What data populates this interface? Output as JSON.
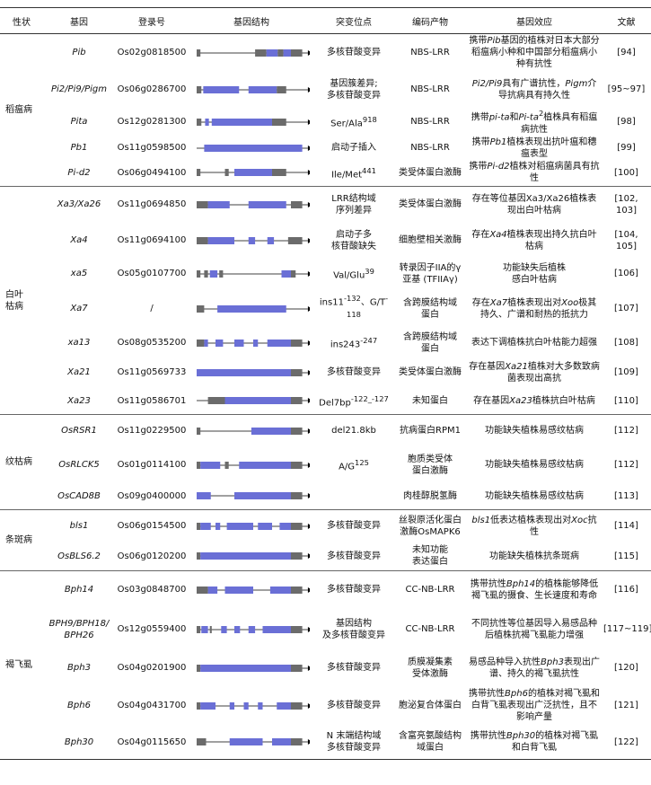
{
  "table": {
    "headers": [
      "性状",
      "基因",
      "登录号",
      "基因结构",
      "突变位点",
      "编码产物",
      "基因效应",
      "文献"
    ],
    "groups": [
      {
        "trait": "稻瘟病",
        "rows": [
          {
            "gene": "Pib",
            "acc": "Os02g0818500",
            "mut": "多核苷酸变异",
            "product": "NBS-LRR",
            "effect": [
              "携带",
              {
                "i": "Pib"
              },
              "基因的植株对日本大部分稻瘟病小种和中国部分稻瘟病小种有抗性"
            ],
            "ref": "[94]"
          },
          {
            "gene": "Pi2/Pi9/Pigm",
            "acc": "Os06g0286700",
            "mut": "基因簇差异;\n多核苷酸变异",
            "product": "NBS-LRR",
            "effect": [
              {
                "i": "Pi2/Pi9"
              },
              "具有广谱抗性，",
              {
                "i": "Pigm"
              },
              "介导抗病具有持久性"
            ],
            "ref": "[95~97]"
          },
          {
            "gene": "Pita",
            "acc": "Os12g0281300",
            "mut": [
              "Ser/Ala",
              {
                "sup": "918"
              }
            ],
            "product": "NBS-LRR",
            "effect": [
              "携带",
              {
                "i": "pi-ta"
              },
              "和",
              {
                "i": "Pi-ta"
              },
              {
                "sup": "2"
              },
              "植株具有稻瘟病抗性"
            ],
            "ref": "[98]"
          },
          {
            "gene": "Pb1",
            "acc": "Os11g0598500",
            "mut": "启动子插入",
            "product": "NBS-LRR",
            "effect": [
              "携带",
              {
                "i": "Pb1"
              },
              "植株表现出抗叶瘟和穗瘟表型"
            ],
            "ref": "[99]"
          },
          {
            "gene": "Pi-d2",
            "acc": "Os06g0494100",
            "mut": [
              "Ile/Met",
              {
                "sup": "441"
              }
            ],
            "product": "类受体蛋白激酶",
            "effect": [
              "携带",
              {
                "i": "Pi-d2"
              },
              "植株对稻瘟病菌具有抗性"
            ],
            "ref": "[100]"
          }
        ]
      },
      {
        "trait": "白叶\n枯病",
        "rows": [
          {
            "gene": "Xa3/Xa26",
            "acc": "Os11g0694850",
            "mut": "LRR结构域\n序列差异",
            "product": "类受体蛋白激酶",
            "effect": "存在等位基因Xa3/Xa26植株表现出白叶枯病",
            "ref": "[102,\n103]"
          },
          {
            "gene": "Xa4",
            "acc": "Os11g0694100",
            "mut": "启动子多\n核苷酸缺失",
            "product": "细胞壁相关激酶",
            "effect": [
              "存在",
              {
                "i": "Xa4"
              },
              "植株表现出持久抗白叶枯病"
            ],
            "ref": "[104,\n105]"
          },
          {
            "gene": "xa5",
            "acc": "Os05g0107700",
            "mut": [
              "Val/Glu",
              {
                "sup": "39"
              }
            ],
            "product": "转录因子IIA的γ\n亚基 (TFIIAγ)",
            "effect": "功能缺失后植株\n感白叶枯病",
            "ref": "[106]"
          },
          {
            "gene": "Xa7",
            "acc": "/",
            "mut": [
              "ins11",
              {
                "sup": "-132"
              },
              "、G/T",
              {
                "sup": "-118"
              }
            ],
            "product": "含跨膜结构域\n蛋白",
            "effect": [
              "存在",
              {
                "i": "Xa7"
              },
              "植株表现出对",
              {
                "i": "Xoo"
              },
              "极其持久、广谱和耐热的抵抗力"
            ],
            "ref": "[107]"
          },
          {
            "gene": "xa13",
            "acc": "Os08g0535200",
            "mut": [
              "ins243",
              {
                "sup": "-247"
              }
            ],
            "product": "含跨膜结构域\n蛋白",
            "effect": "表达下调植株抗白叶枯能力超强",
            "ref": "[108]"
          },
          {
            "gene": "Xa21",
            "acc": "Os11g0569733",
            "mut": "多核苷酸变异",
            "product": "类受体蛋白激酶",
            "effect": [
              "存在基因",
              {
                "i": "Xa21"
              },
              "植株对大多数致病菌表现出高抗"
            ],
            "ref": "[109]"
          },
          {
            "gene": "Xa23",
            "acc": "Os11g0586701",
            "mut": [
              "Del7bp",
              {
                "sup": "-122_-127"
              }
            ],
            "product": "未知蛋白",
            "effect": [
              "存在基因",
              {
                "i": "Xa23"
              },
              "植株抗白叶枯病"
            ],
            "ref": "[110]"
          }
        ]
      },
      {
        "trait": "纹枯病",
        "rows": [
          {
            "gene": "OsRSR1",
            "acc": "Os11g0229500",
            "mut": "del21.8kb",
            "product": "抗病蛋白RPM1",
            "effect": "功能缺失植株易感纹枯病",
            "ref": "[112]"
          },
          {
            "gene": "OsRLCK5",
            "acc": "Os01g0114100",
            "mut": [
              "A/G",
              {
                "sup": "125"
              }
            ],
            "product": "胞质类受体\n蛋白激酶",
            "effect": "功能缺失植株易感纹枯病",
            "ref": "[112]"
          },
          {
            "gene": "OsCAD8B",
            "acc": "Os09g0400000",
            "product": "肉桂醇脱氢酶",
            "effect": "功能缺失植株易感纹枯病",
            "ref": "[113]"
          }
        ]
      },
      {
        "trait": "条斑病",
        "rows": [
          {
            "gene": "bls1",
            "acc": "Os06g0154500",
            "mut": "多核苷酸变异",
            "product": "丝裂原活化蛋白\n激酶OsMAPK6",
            "effect": [
              {
                "i": "bls1"
              },
              "低表达植株表现出对",
              {
                "i": "Xoc"
              },
              "抗性"
            ],
            "ref": "[114]"
          },
          {
            "gene": "OsBLS6.2",
            "acc": "Os06g0120200",
            "mut": "多核苷酸变异",
            "product": "未知功能\n表达蛋白",
            "effect": "功能缺失植株抗条斑病",
            "ref": "[115]"
          }
        ]
      },
      {
        "trait": "褐飞虱",
        "rows": [
          {
            "gene": "Bph14",
            "acc": "Os03g0848700",
            "mut": "多核苷酸变异",
            "product": "CC-NB-LRR",
            "effect": [
              "携带抗性",
              {
                "i": "Bph14"
              },
              "的植株能够降低褐飞虱的摄食、生长速度和寿命"
            ],
            "ref": "[116]"
          },
          {
            "gene": "BPH9/BPH18/\nBPH26",
            "acc": "Os12g0559400",
            "mut": "基因结构\n及多核苷酸变异",
            "product": "CC-NB-LRR",
            "effect": "不同抗性等位基因导入易感品种后植株抗褐飞虱能力增强",
            "ref": "[117~119]"
          },
          {
            "gene": "Bph3",
            "acc": "Os04g0201900",
            "mut": "多核苷酸变异",
            "product": "质膜凝集素\n受体激酶",
            "effect": [
              "易感品种导入抗性",
              {
                "i": "Bph3"
              },
              "表现出广谱、持久的褐飞虱抗性"
            ],
            "ref": "[120]"
          },
          {
            "gene": "Bph6",
            "acc": "Os04g0431700",
            "mut": "多核苷酸变异",
            "product": "胞泌复合体蛋白",
            "effect": [
              "携带抗性",
              {
                "i": "Bph6"
              },
              "的植株对褐飞虱和白背飞虱表现出广泛抗性，且不影响产量"
            ],
            "ref": "[121]"
          },
          {
            "gene": "Bph30",
            "acc": "Os04g0115650",
            "mut": "N 末端结构域\n多核苷酸变异",
            "product": "含富亮氨酸结构\n域蛋白",
            "effect": [
              "携带抗性",
              {
                "i": "Bph30"
              },
              "的植株对褐飞虱和白背飞虱"
            ],
            "ref": "[122]"
          }
        ]
      }
    ]
  }
}
